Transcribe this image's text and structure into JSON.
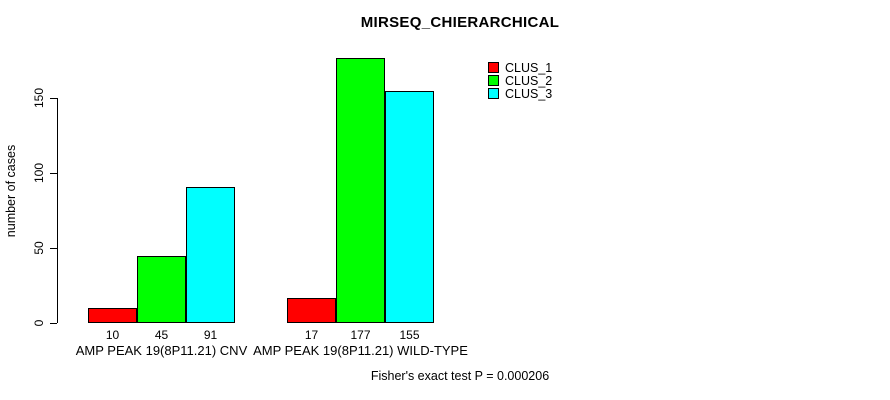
{
  "chart_data": {
    "type": "bar",
    "title": "MIRSEQ_CHIERARCHICAL",
    "ylabel": "number of cases",
    "xlabel": "",
    "yticks": [
      0,
      50,
      100,
      150
    ],
    "ylim": [
      0,
      180
    ],
    "grid": false,
    "legend_position": "top-right",
    "categories": [
      "AMP PEAK 19(8P11.21) CNV",
      "AMP PEAK 19(8P11.21) WILD-TYPE"
    ],
    "series": [
      {
        "name": "CLUS_1",
        "color": "#ff0000",
        "values": [
          10,
          17
        ]
      },
      {
        "name": "CLUS_2",
        "color": "#00ff00",
        "values": [
          45,
          177
        ]
      },
      {
        "name": "CLUS_3",
        "color": "#00ffff",
        "values": [
          91,
          155
        ]
      }
    ],
    "bar_value_labels": [
      [
        10,
        45,
        91
      ],
      [
        17,
        177,
        155
      ]
    ],
    "annotation": "Fisher's exact test P = 0.000206"
  },
  "colors": {
    "background": "#ffffff",
    "axis": "#000000",
    "text": "#000000",
    "clus_1": "#ff0000",
    "clus_2": "#00ff00",
    "clus_3": "#00ffff"
  }
}
